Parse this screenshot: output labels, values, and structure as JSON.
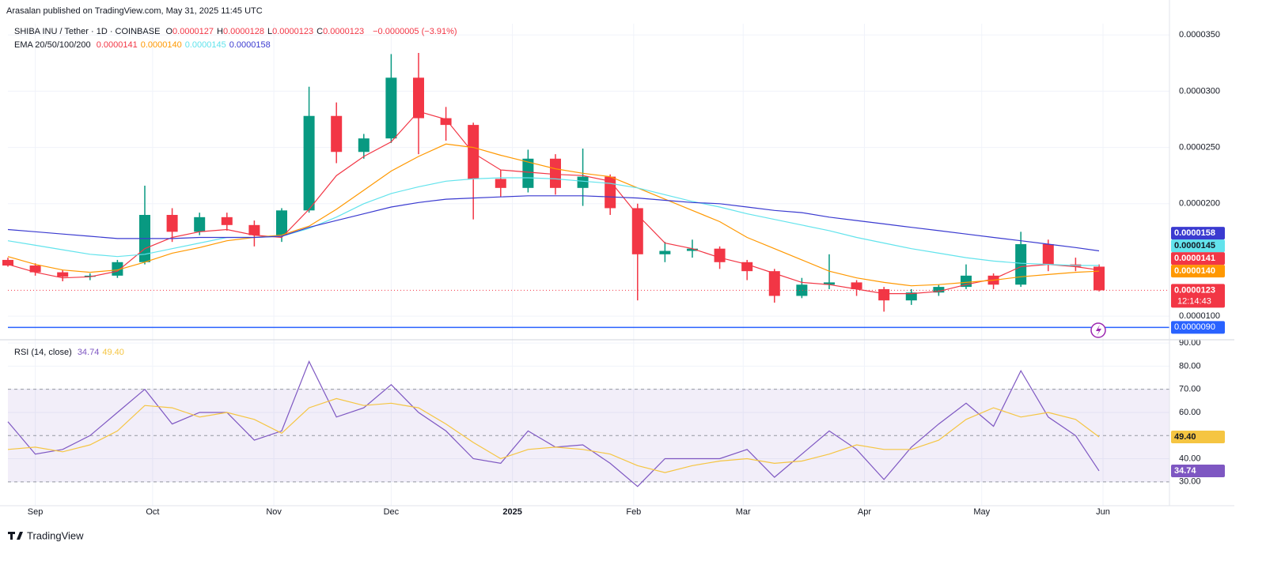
{
  "header": "Arasalan published on TradingView.com, May 31, 2025 11:45 UTC",
  "footer": "TradingView",
  "chart_data": [
    {
      "type": "candlestick",
      "title": "SHIBA INU / Tether · 1D · COINBASE",
      "readouts": [
        {
          "name": "O",
          "value": 1.27e-05,
          "label": "0.0000127"
        },
        {
          "name": "H",
          "value": 1.28e-05,
          "label": "0.0000128"
        },
        {
          "name": "L",
          "value": 1.23e-05,
          "label": "0.0000123"
        },
        {
          "name": "C",
          "value": 1.23e-05,
          "label": "0.0000123"
        }
      ],
      "change": "−0.0000005 (−3.91%)",
      "up_color": "#089981",
      "down_color": "#f23645",
      "x": [
        -7,
        0,
        7,
        14,
        21,
        28,
        35,
        42,
        49,
        56,
        63,
        70,
        77,
        84,
        91,
        98,
        105,
        112,
        119,
        126,
        133,
        140,
        147,
        154,
        161,
        168,
        175,
        182,
        189,
        196,
        203,
        210,
        217,
        224,
        231,
        238,
        245,
        252,
        259,
        266,
        272
      ],
      "open": [
        1.5e-05,
        1.45e-05,
        1.39e-05,
        1.35e-05,
        1.36e-05,
        1.48e-05,
        1.9e-05,
        1.75e-05,
        1.88e-05,
        1.81e-05,
        1.72e-05,
        1.94e-05,
        2.78e-05,
        2.46e-05,
        2.58e-05,
        3.12e-05,
        2.76e-05,
        2.7e-05,
        2.22e-05,
        2.14e-05,
        2.4e-05,
        2.14e-05,
        2.24e-05,
        1.96e-05,
        1.55e-05,
        1.58e-05,
        1.6e-05,
        1.48e-05,
        1.4e-05,
        1.18e-05,
        1.28e-05,
        1.3e-05,
        1.24e-05,
        1.14e-05,
        1.21e-05,
        1.26e-05,
        1.36e-05,
        1.28e-05,
        1.64e-05,
        1.46e-05,
        1.44e-05
      ],
      "high": [
        1.52e-05,
        1.47e-05,
        1.41e-05,
        1.38e-05,
        1.5e-05,
        2.16e-05,
        1.96e-05,
        1.92e-05,
        1.92e-05,
        1.85e-05,
        1.96e-05,
        3.04e-05,
        2.9e-05,
        2.62e-05,
        3.33e-05,
        3.34e-05,
        2.86e-05,
        2.72e-05,
        2.3e-05,
        2.48e-05,
        2.44e-05,
        2.49e-05,
        2.26e-05,
        2e-05,
        1.66e-05,
        1.68e-05,
        1.62e-05,
        1.5e-05,
        1.42e-05,
        1.34e-05,
        1.55e-05,
        1.32e-05,
        1.26e-05,
        1.24e-05,
        1.28e-05,
        1.46e-05,
        1.38e-05,
        1.75e-05,
        1.68e-05,
        1.52e-05,
        1.46e-05
      ],
      "low": [
        1.44e-05,
        1.36e-05,
        1.31e-05,
        1.32e-05,
        1.34e-05,
        1.46e-05,
        1.66e-05,
        1.72e-05,
        1.76e-05,
        1.62e-05,
        1.66e-05,
        1.92e-05,
        2.36e-05,
        2.4e-05,
        2.54e-05,
        2.44e-05,
        2.56e-05,
        1.86e-05,
        2.06e-05,
        2.1e-05,
        2.08e-05,
        1.98e-05,
        1.9e-05,
        1.14e-05,
        1.48e-05,
        1.52e-05,
        1.42e-05,
        1.32e-05,
        1.12e-05,
        1.16e-05,
        1.24e-05,
        1.18e-05,
        1.04e-05,
        1.1e-05,
        1.18e-05,
        1.24e-05,
        1.24e-05,
        1.26e-05,
        1.4e-05,
        1.4e-05,
        1.22e-05
      ],
      "close": [
        1.45e-05,
        1.39e-05,
        1.35e-05,
        1.36e-05,
        1.48e-05,
        1.9e-05,
        1.75e-05,
        1.88e-05,
        1.81e-05,
        1.72e-05,
        1.94e-05,
        2.78e-05,
        2.46e-05,
        2.58e-05,
        3.12e-05,
        2.76e-05,
        2.7e-05,
        2.22e-05,
        2.14e-05,
        2.4e-05,
        2.14e-05,
        2.24e-05,
        1.96e-05,
        1.55e-05,
        1.58e-05,
        1.6e-05,
        1.48e-05,
        1.4e-05,
        1.18e-05,
        1.28e-05,
        1.3e-05,
        1.24e-05,
        1.14e-05,
        1.21e-05,
        1.26e-05,
        1.36e-05,
        1.28e-05,
        1.64e-05,
        1.46e-05,
        1.44e-05,
        1.23e-05
      ],
      "last_price": {
        "value": 1.23e-05,
        "label": "0.0000123"
      },
      "countdown": "12:14:43",
      "overlay_title": "EMA 20/50/100/200",
      "series": [
        {
          "color": "#f23645",
          "badge_text": "#ffffff",
          "readout": {
            "value": 1.41e-05,
            "label": "0.0000141"
          },
          "values": [
            1.46e-05,
            1.39e-05,
            1.34e-05,
            1.35e-05,
            1.4e-05,
            1.6e-05,
            1.7e-05,
            1.75e-05,
            1.77e-05,
            1.72e-05,
            1.7e-05,
            1.95e-05,
            2.25e-05,
            2.42e-05,
            2.55e-05,
            2.82e-05,
            2.75e-05,
            2.45e-05,
            2.3e-05,
            2.28e-05,
            2.26e-05,
            2.25e-05,
            2.2e-05,
            1.9e-05,
            1.65e-05,
            1.6e-05,
            1.52e-05,
            1.46e-05,
            1.38e-05,
            1.3e-05,
            1.28e-05,
            1.24e-05,
            1.2e-05,
            1.2e-05,
            1.22e-05,
            1.28e-05,
            1.33e-05,
            1.44e-05,
            1.46e-05,
            1.44e-05,
            1.41e-05
          ]
        },
        {
          "color": "#ff9800",
          "badge_text": "#ffffff",
          "readout": {
            "value": 1.4e-05,
            "label": "0.0000140"
          },
          "values": [
            1.53e-05,
            1.46e-05,
            1.41e-05,
            1.39e-05,
            1.41e-05,
            1.48e-05,
            1.56e-05,
            1.61e-05,
            1.67e-05,
            1.7e-05,
            1.72e-05,
            1.8e-05,
            1.95e-05,
            2.12e-05,
            2.29e-05,
            2.42e-05,
            2.53e-05,
            2.5e-05,
            2.43e-05,
            2.37e-05,
            2.31e-05,
            2.27e-05,
            2.24e-05,
            2.14e-05,
            2.04e-05,
            1.94e-05,
            1.84e-05,
            1.7e-05,
            1.6e-05,
            1.5e-05,
            1.4e-05,
            1.34e-05,
            1.3e-05,
            1.27e-05,
            1.28e-05,
            1.3e-05,
            1.32e-05,
            1.35e-05,
            1.37e-05,
            1.39e-05,
            1.4e-05
          ]
        },
        {
          "color": "#62e3ec",
          "badge_text": "#131722",
          "readout": {
            "value": 1.45e-05,
            "label": "0.0000145"
          },
          "values": [
            1.67e-05,
            1.63e-05,
            1.59e-05,
            1.55e-05,
            1.53e-05,
            1.55e-05,
            1.6e-05,
            1.65e-05,
            1.7e-05,
            1.7e-05,
            1.71e-05,
            1.78e-05,
            1.88e-05,
            2e-05,
            2.09e-05,
            2.15e-05,
            2.2e-05,
            2.22e-05,
            2.23e-05,
            2.23e-05,
            2.22e-05,
            2.2e-05,
            2.18e-05,
            2.14e-05,
            2.08e-05,
            2.02e-05,
            1.97e-05,
            1.91e-05,
            1.86e-05,
            1.81e-05,
            1.76e-05,
            1.7e-05,
            1.65e-05,
            1.6e-05,
            1.56e-05,
            1.52e-05,
            1.49e-05,
            1.47e-05,
            1.46e-05,
            1.45e-05,
            1.45e-05
          ]
        },
        {
          "color": "#3a3ad0",
          "badge_text": "#ffffff",
          "readout": {
            "value": 1.58e-05,
            "label": "0.0000158"
          },
          "values": [
            1.77e-05,
            1.75e-05,
            1.73e-05,
            1.71e-05,
            1.69e-05,
            1.69e-05,
            1.69e-05,
            1.7e-05,
            1.7e-05,
            1.7e-05,
            1.71e-05,
            1.79e-05,
            1.85e-05,
            1.91e-05,
            1.97e-05,
            2.01e-05,
            2.04e-05,
            2.05e-05,
            2.06e-05,
            2.07e-05,
            2.07e-05,
            2.07e-05,
            2.06e-05,
            2.05e-05,
            2.03e-05,
            2.01e-05,
            2e-05,
            1.97e-05,
            1.94e-05,
            1.92e-05,
            1.88e-05,
            1.85e-05,
            1.82e-05,
            1.79e-05,
            1.76e-05,
            1.73e-05,
            1.7e-05,
            1.67e-05,
            1.64e-05,
            1.61e-05,
            1.58e-05
          ]
        }
      ],
      "alert_line": {
        "value": 9e-06,
        "label": "0.0000090",
        "color": "#2962ff"
      },
      "xlim": [
        -7,
        290
      ],
      "ylim": [
        7.9e-06,
        3.6e-05
      ],
      "yticks": [
        {
          "value": 1e-05,
          "label": "0.0000100"
        },
        {
          "value": 2e-05,
          "label": "0.0000200"
        },
        {
          "value": 2.5e-05,
          "label": "0.0000250"
        },
        {
          "value": 3e-05,
          "label": "0.0000300"
        },
        {
          "value": 3.5e-05,
          "label": "0.0000350"
        }
      ],
      "grid": true
    },
    {
      "type": "line",
      "title": "RSI (14, close)",
      "x": [
        -7,
        0,
        7,
        14,
        21,
        28,
        35,
        42,
        49,
        56,
        63,
        70,
        77,
        84,
        91,
        98,
        105,
        112,
        119,
        126,
        133,
        140,
        147,
        154,
        161,
        168,
        175,
        182,
        189,
        196,
        203,
        210,
        217,
        224,
        231,
        238,
        245,
        252,
        259,
        266,
        272
      ],
      "series": [
        {
          "color": "#7e57c2",
          "badge_text": "#ffffff",
          "readout": {
            "value": 34.74,
            "label": "34.74"
          },
          "values": [
            56,
            42,
            44,
            50,
            60,
            70,
            55,
            60,
            60,
            48,
            52,
            82,
            58,
            62,
            72,
            60,
            52,
            40,
            38,
            52,
            45,
            46,
            38,
            28,
            40,
            40,
            40,
            44,
            32,
            42,
            52,
            44,
            31,
            45,
            55,
            64,
            54,
            78,
            58,
            50,
            34.74
          ]
        },
        {
          "color": "#f5c542",
          "badge_text": "#131722",
          "readout": {
            "value": 49.4,
            "label": "49.40"
          },
          "values": [
            44,
            45,
            43,
            46,
            52,
            63,
            62,
            58,
            60,
            57,
            51,
            62,
            66,
            63,
            64,
            62,
            55,
            47,
            40,
            44,
            45,
            44,
            42,
            37,
            34,
            37,
            39,
            40,
            38,
            39,
            42,
            46,
            44,
            44,
            48,
            57,
            62,
            58,
            60,
            57,
            49.4
          ]
        }
      ],
      "levels": [
        70,
        50,
        30
      ],
      "band_color": "#7e57c2",
      "xlim": [
        -7,
        290
      ],
      "ylim": [
        19.7,
        91.4
      ],
      "yticks": [
        {
          "value": 30,
          "label": "30.00"
        },
        {
          "value": 40,
          "label": "40.00"
        },
        {
          "value": 60,
          "label": "60.00"
        },
        {
          "value": 70,
          "label": "70.00"
        },
        {
          "value": 80,
          "label": "80.00"
        },
        {
          "value": 90,
          "label": "90.00"
        }
      ],
      "xticks": [
        {
          "value": 0,
          "label": "Sep"
        },
        {
          "value": 30,
          "label": "Oct"
        },
        {
          "value": 61,
          "label": "Nov"
        },
        {
          "value": 91,
          "label": "Dec"
        },
        {
          "value": 122,
          "label": "2025"
        },
        {
          "value": 153,
          "label": "Feb"
        },
        {
          "value": 181,
          "label": "Mar"
        },
        {
          "value": 212,
          "label": "Apr"
        },
        {
          "value": 242,
          "label": "May"
        },
        {
          "value": 273,
          "label": "Jun"
        }
      ],
      "grid": true
    }
  ]
}
